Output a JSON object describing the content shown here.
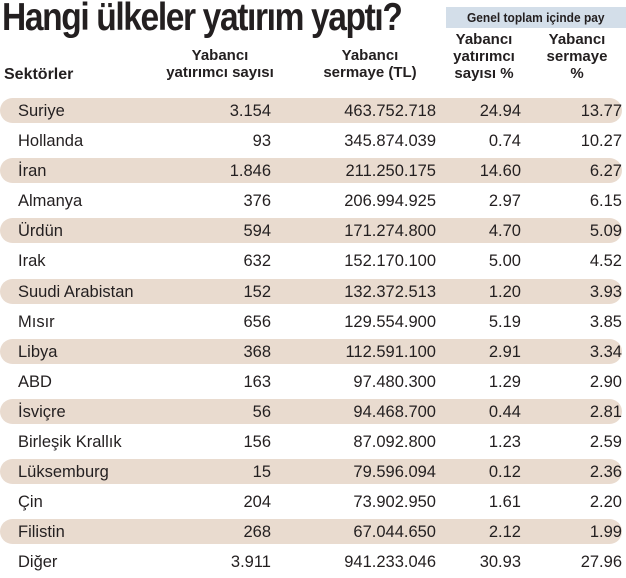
{
  "title": "Hangi ülkeler yatırım yaptı?",
  "share_box_label": "Genel toplam içinde pay",
  "headers": {
    "sector": "Sektörler",
    "investor_count": [
      "Yabancı",
      "yatırımcı sayısı"
    ],
    "capital": [
      "Yabancı",
      "sermaye (TL)"
    ],
    "investor_pct": [
      "Yabancı",
      "yatırımcı",
      "sayısı %"
    ],
    "capital_pct": [
      "Yabancı",
      "sermaye",
      "%"
    ]
  },
  "colors": {
    "row_shade": "#e9dbcf",
    "share_box": "#d3dee9",
    "text": "#231f20"
  },
  "rows": [
    {
      "name": "Suriye",
      "count": "3.154",
      "capital": "463.752.718",
      "count_pct": "24.94",
      "capital_pct": "13.77",
      "shaded": true
    },
    {
      "name": "Hollanda",
      "count": "93",
      "capital": "345.874.039",
      "count_pct": "0.74",
      "capital_pct": "10.27",
      "shaded": false
    },
    {
      "name": "İran",
      "count": "1.846",
      "capital": "211.250.175",
      "count_pct": "14.60",
      "capital_pct": "6.27",
      "shaded": true
    },
    {
      "name": "Almanya",
      "count": "376",
      "capital": "206.994.925",
      "count_pct": "2.97",
      "capital_pct": "6.15",
      "shaded": false
    },
    {
      "name": "Ürdün",
      "count": "594",
      "capital": "171.274.800",
      "count_pct": "4.70",
      "capital_pct": "5.09",
      "shaded": true
    },
    {
      "name": "Irak",
      "count": "632",
      "capital": "152.170.100",
      "count_pct": "5.00",
      "capital_pct": "4.52",
      "shaded": false
    },
    {
      "name": "Suudi Arabistan",
      "count": "152",
      "capital": "132.372.513",
      "count_pct": "1.20",
      "capital_pct": "3.93",
      "shaded": true
    },
    {
      "name": "Mısır",
      "count": "656",
      "capital": "129.554.900",
      "count_pct": "5.19",
      "capital_pct": "3.85",
      "shaded": false
    },
    {
      "name": "Libya",
      "count": "368",
      "capital": "112.591.100",
      "count_pct": "2.91",
      "capital_pct": "3.34",
      "shaded": true
    },
    {
      "name": "ABD",
      "count": "163",
      "capital": "97.480.300",
      "count_pct": "1.29",
      "capital_pct": "2.90",
      "shaded": false
    },
    {
      "name": "İsviçre",
      "count": "56",
      "capital": "94.468.700",
      "count_pct": "0.44",
      "capital_pct": "2.81",
      "shaded": true
    },
    {
      "name": "Birleşik Krallık",
      "count": "156",
      "capital": "87.092.800",
      "count_pct": "1.23",
      "capital_pct": "2.59",
      "shaded": false
    },
    {
      "name": "Lüksemburg",
      "count": "15",
      "capital": "79.596.094",
      "count_pct": "0.12",
      "capital_pct": "2.36",
      "shaded": true
    },
    {
      "name": "Çin",
      "count": "204",
      "capital": "73.902.950",
      "count_pct": "1.61",
      "capital_pct": "2.20",
      "shaded": false
    },
    {
      "name": "Filistin",
      "count": "268",
      "capital": "67.044.650",
      "count_pct": "2.12",
      "capital_pct": "1.99",
      "shaded": true
    },
    {
      "name": "Diğer",
      "count": "3.911",
      "capital": "941.233.046",
      "count_pct": "30.93",
      "capital_pct": "27.96",
      "shaded": false
    }
  ]
}
